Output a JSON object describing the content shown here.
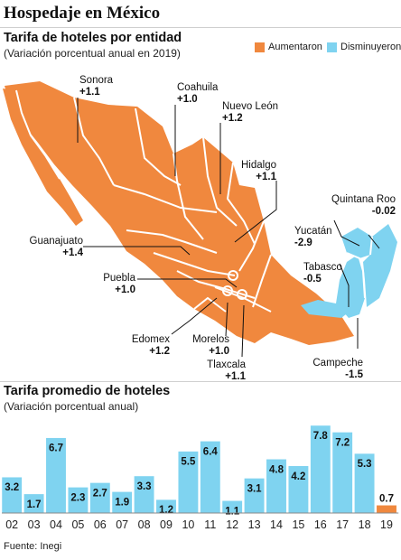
{
  "title": "Hospedaje en México",
  "map_section": {
    "title": "Tarifa de hoteles por entidad",
    "subtitle": "(Variación porcentual anual en 2019)",
    "legend": [
      {
        "label": "Aumentaron",
        "color": "#f0883e"
      },
      {
        "label": "Disminuyeron",
        "color": "#7fd3f0"
      }
    ],
    "states": [
      {
        "name": "Sonora",
        "value": "+1.1"
      },
      {
        "name": "Coahuila",
        "value": "+1.0"
      },
      {
        "name": "Nuevo León",
        "value": "+1.2"
      },
      {
        "name": "Hidalgo",
        "value": "+1.1"
      },
      {
        "name": "Quintana Roo",
        "value": "-0.02"
      },
      {
        "name": "Yucatán",
        "value": "-2.9"
      },
      {
        "name": "Tabasco",
        "value": "-0.5"
      },
      {
        "name": "Guanajuato",
        "value": "+1.4"
      },
      {
        "name": "Puebla",
        "value": "+1.0"
      },
      {
        "name": "Edomex",
        "value": "+1.2"
      },
      {
        "name": "Morelos",
        "value": "+1.0"
      },
      {
        "name": "Tlaxcala",
        "value": "+1.1"
      },
      {
        "name": "Campeche",
        "value": "-1.5"
      }
    ]
  },
  "chart_section": {
    "title": "Tarifa promedio de hoteles",
    "subtitle": "(Variación porcentual anual)"
  },
  "chart_data": {
    "type": "bar",
    "categories": [
      "02",
      "03",
      "04",
      "05",
      "06",
      "07",
      "08",
      "09",
      "10",
      "11",
      "12",
      "13",
      "14",
      "15",
      "16",
      "17",
      "18",
      "19"
    ],
    "values": [
      3.2,
      1.7,
      6.7,
      2.3,
      2.7,
      1.9,
      3.3,
      1.2,
      5.5,
      6.4,
      1.1,
      3.1,
      4.8,
      4.2,
      7.8,
      7.2,
      5.3,
      0.7
    ],
    "value_labels": [
      "3.2",
      "1.7",
      "6.7",
      "2.3",
      "2.7",
      "1.9",
      "3.3",
      "1.2",
      "5.5",
      "6.4",
      "1.1",
      "3.1",
      "4.8",
      "4.2",
      "7.8",
      "7.2",
      "5.3",
      "0.7"
    ],
    "colors": {
      "default": "#7fd3f0",
      "highlight": "#f0883e",
      "highlight_index": 17
    },
    "ylim": [
      0,
      8.2
    ],
    "grid": false,
    "xlabel": "",
    "ylabel": ""
  },
  "source": "Fuente: Inegi"
}
